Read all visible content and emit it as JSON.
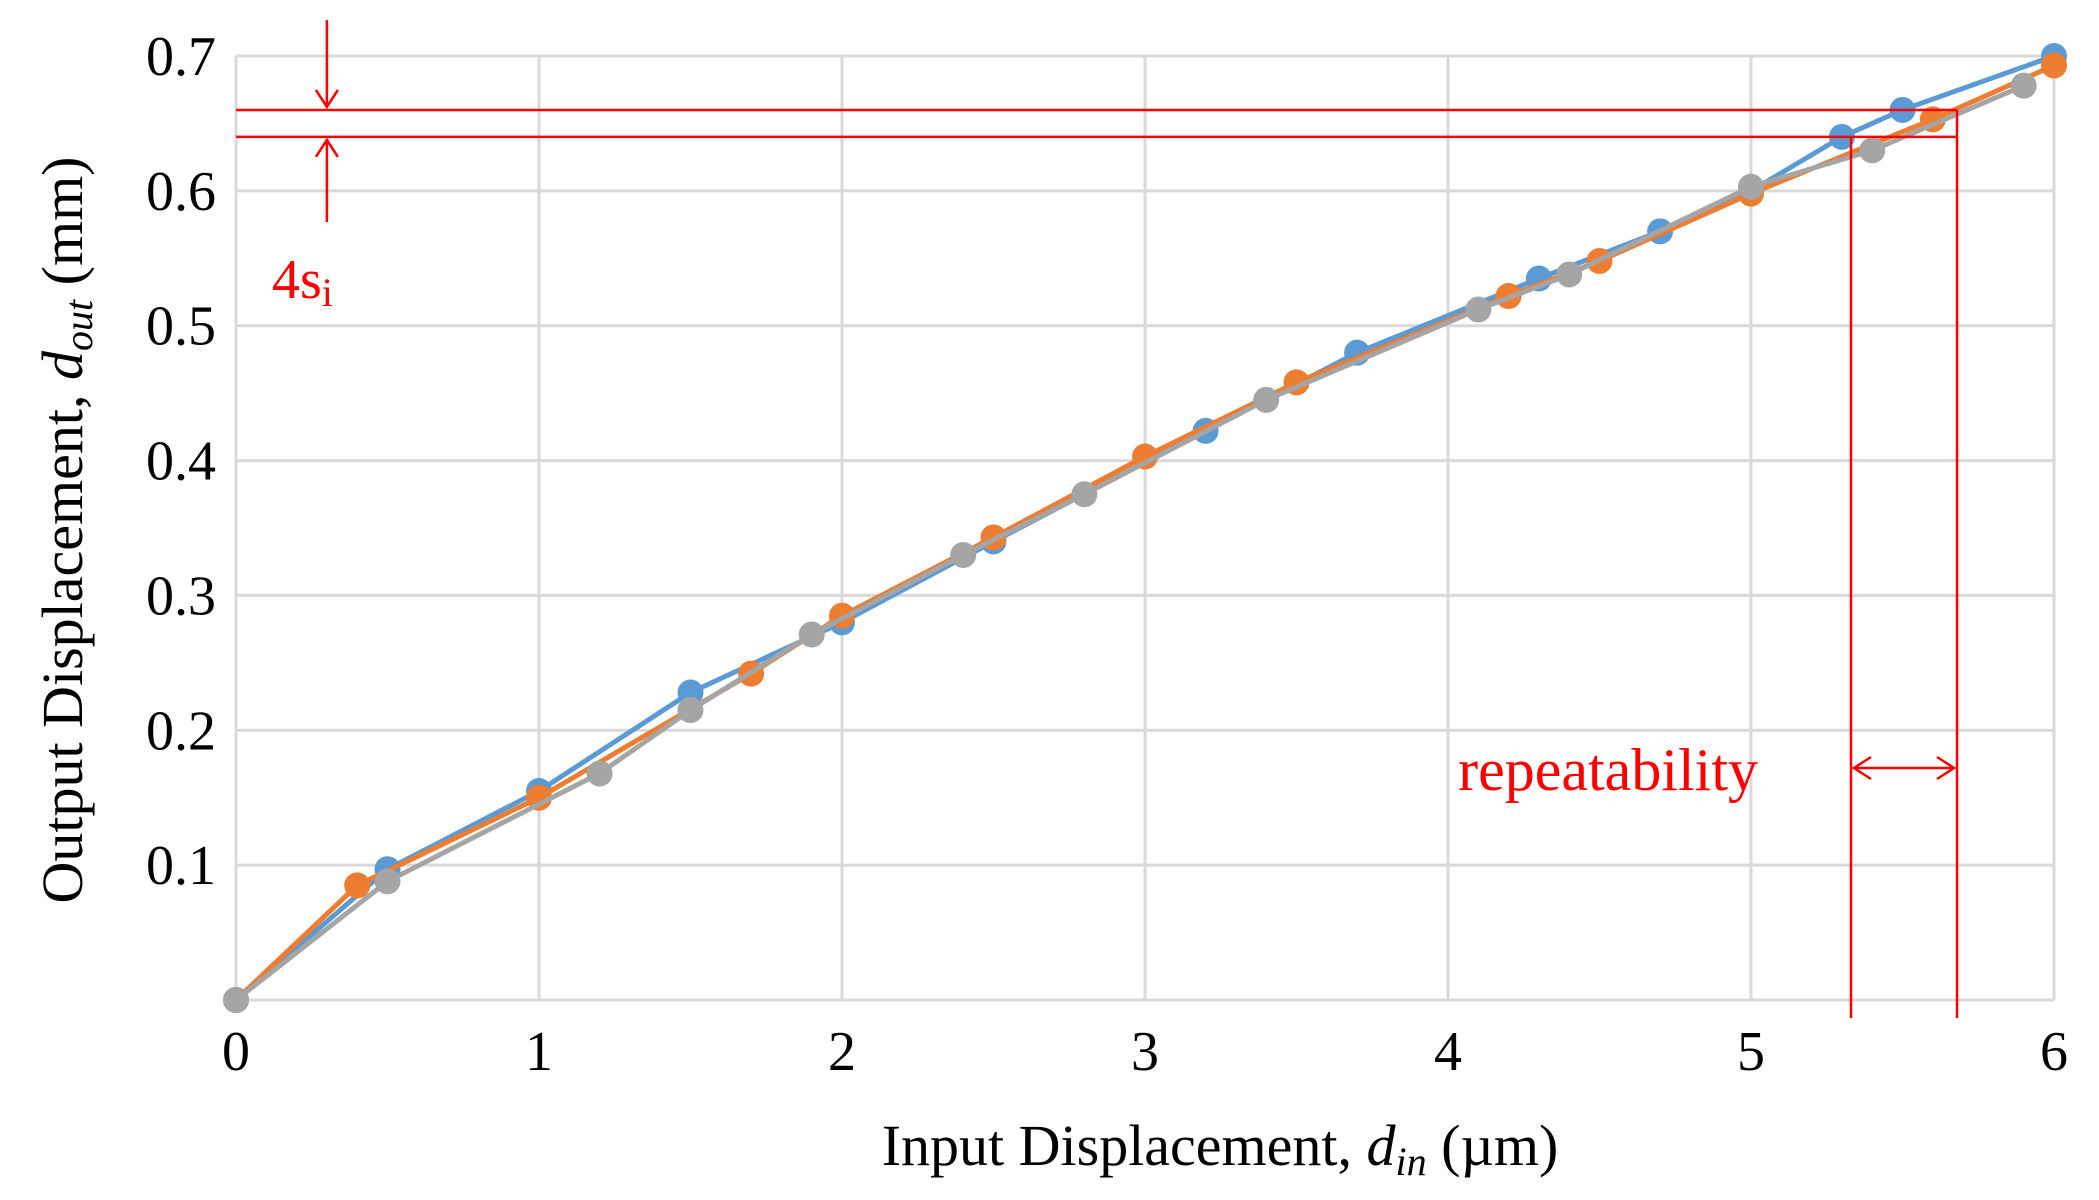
{
  "chart_data": {
    "type": "line",
    "title": "",
    "xlabel": {
      "text": "Input Displacement, ",
      "var": "d",
      "sub": "in",
      "unit": " (µm)"
    },
    "ylabel": {
      "text": "Output Displacement, ",
      "var": "d",
      "sub": "out",
      "unit": " (mm)"
    },
    "xlim": [
      0,
      6
    ],
    "ylim": [
      0,
      0.7
    ],
    "x_ticks": [
      "0",
      "1",
      "2",
      "3",
      "4",
      "5",
      "6"
    ],
    "y_ticks": [
      "0.1",
      "0.2",
      "0.3",
      "0.4",
      "0.5",
      "0.6",
      "0.7"
    ],
    "grid": true,
    "legend": "none",
    "series": [
      {
        "color": "#5b9bd5",
        "points": [
          [
            0,
            0
          ],
          [
            0.5,
            0.097
          ],
          [
            1.0,
            0.155
          ],
          [
            1.5,
            0.228
          ],
          [
            2.0,
            0.28
          ],
          [
            2.5,
            0.34
          ],
          [
            3.2,
            0.422
          ],
          [
            3.7,
            0.48
          ],
          [
            4.3,
            0.535
          ],
          [
            4.7,
            0.57
          ],
          [
            5.0,
            0.6
          ],
          [
            5.3,
            0.64
          ],
          [
            5.5,
            0.66
          ],
          [
            6.0,
            0.7
          ]
        ]
      },
      {
        "color": "#ed7d31",
        "points": [
          [
            0,
            0
          ],
          [
            0.4,
            0.085
          ],
          [
            1.0,
            0.15
          ],
          [
            1.7,
            0.242
          ],
          [
            2.0,
            0.285
          ],
          [
            2.5,
            0.343
          ],
          [
            3.0,
            0.403
          ],
          [
            3.5,
            0.458
          ],
          [
            4.2,
            0.522
          ],
          [
            4.5,
            0.548
          ],
          [
            5.0,
            0.598
          ],
          [
            5.6,
            0.653
          ],
          [
            6.0,
            0.693
          ]
        ]
      },
      {
        "color": "#a5a5a5",
        "points": [
          [
            0,
            0
          ],
          [
            0.5,
            0.088
          ],
          [
            1.2,
            0.168
          ],
          [
            1.5,
            0.215
          ],
          [
            1.9,
            0.271
          ],
          [
            2.4,
            0.33
          ],
          [
            2.8,
            0.375
          ],
          [
            3.4,
            0.445
          ],
          [
            4.1,
            0.512
          ],
          [
            4.4,
            0.538
          ],
          [
            5.0,
            0.603
          ],
          [
            5.4,
            0.63
          ],
          [
            5.9,
            0.678
          ]
        ]
      }
    ],
    "annotations": {
      "color": "#ff0000",
      "hlines": [
        0.66,
        0.64
      ],
      "vlines": [
        5.33,
        5.68
      ],
      "si_label": {
        "prefix": "4s",
        "sub": "i"
      },
      "repeatability_label": "repeatability"
    }
  }
}
